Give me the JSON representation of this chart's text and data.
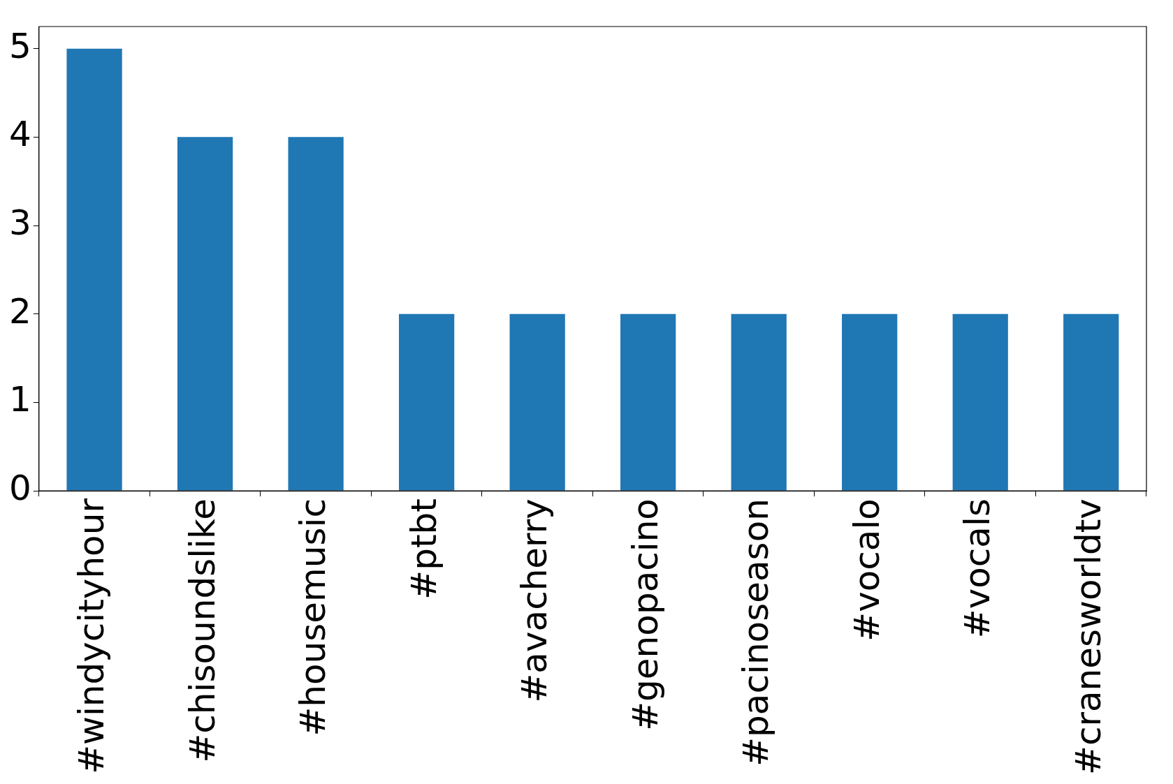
{
  "chart_data": {
    "type": "bar",
    "categories": [
      "#windycityhour",
      "#chisoundslike",
      "#housemusic",
      "#ptbt",
      "#avacherry",
      "#genopacino",
      "#pacinoseason",
      "#vocalo",
      "#vocals",
      "#cranesworldtv"
    ],
    "values": [
      5,
      4,
      4,
      2,
      2,
      2,
      2,
      2,
      2,
      2
    ],
    "color": "#1f77b4",
    "ylim": [
      0,
      5.25
    ],
    "yticks": [
      0,
      1,
      2,
      3,
      4,
      5
    ],
    "grid": false,
    "legend": false
  }
}
